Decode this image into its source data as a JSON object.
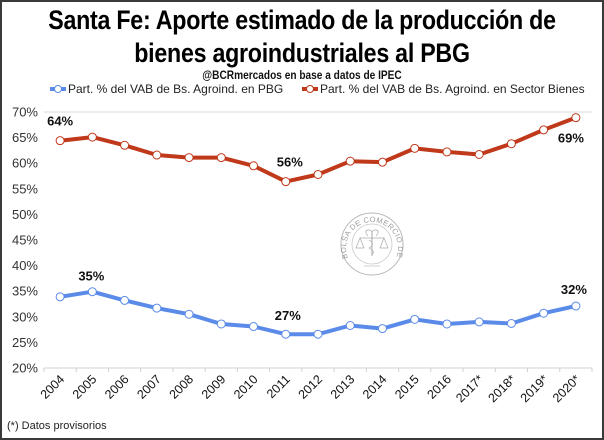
{
  "chart_data": {
    "type": "line",
    "title_lines": [
      "Santa Fe: Aporte estimado de la producción de",
      "bienes agroindustriales al PBG"
    ],
    "subtitle": "@BCRmercados en base a datos de IPEC",
    "categories": [
      "2004",
      "2005",
      "2006",
      "2007",
      "2008",
      "2009",
      "2010",
      "2011",
      "2012",
      "2013",
      "2014",
      "2015",
      "2016",
      "2017*",
      "2018*",
      "2019*",
      "2020*"
    ],
    "series": [
      {
        "name": "Part. % del VAB de Bs. Agroind. en PBG",
        "color": "#5B8BE8",
        "values": [
          33.9,
          34.9,
          33.2,
          31.7,
          30.5,
          28.6,
          28.1,
          26.6,
          26.6,
          28.3,
          27.7,
          29.5,
          28.6,
          29.0,
          28.7,
          30.7,
          32.1
        ],
        "annotations": [
          {
            "index": 1,
            "text": "35%"
          },
          {
            "index": 7,
            "text": "27%"
          },
          {
            "index": 16,
            "text": "32%"
          }
        ]
      },
      {
        "name": "Part. % del VAB de Bs. Agroind. en Sector Bienes",
        "color": "#C0391B",
        "values": [
          64.4,
          65.1,
          63.5,
          61.6,
          61.1,
          61.1,
          59.5,
          56.4,
          57.8,
          60.4,
          60.2,
          62.9,
          62.2,
          61.7,
          63.8,
          66.5,
          68.9
        ],
        "annotations": [
          {
            "index": 0,
            "text": "64%"
          },
          {
            "index": 7,
            "text": "56%"
          },
          {
            "index": 16,
            "text": "69%"
          }
        ]
      }
    ],
    "xlabel": "",
    "ylabel": "",
    "ylim": [
      20,
      70
    ],
    "yticks": [
      20,
      25,
      30,
      35,
      40,
      45,
      50,
      55,
      60,
      65,
      70
    ],
    "ytick_suffix": "%",
    "grid": "top line only",
    "legend_position": "top",
    "footnote": "(*) Datos provisorios",
    "watermark": {
      "icon": "bolsa-de-comercio-seal-icon",
      "text": "BOLSA DE COMERCIO DE ROSARIO"
    }
  }
}
